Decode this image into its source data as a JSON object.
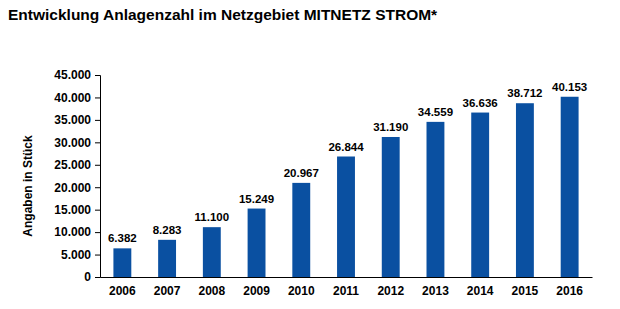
{
  "chart_data": {
    "type": "bar",
    "title": "Entwicklung Anlagenzahl im Netzgebiet MITNETZ STROM*",
    "y_label": "Angaben in Stück",
    "categories": [
      "2006",
      "2007",
      "2008",
      "2009",
      "2010",
      "2011",
      "2012",
      "2013",
      "2014",
      "2015",
      "2016"
    ],
    "values": [
      6382,
      8283,
      11100,
      15249,
      20967,
      26844,
      31190,
      34559,
      36636,
      38712,
      40153
    ],
    "value_labels": [
      "6.382",
      "8.283",
      "11.100",
      "15.249",
      "20.967",
      "26.844",
      "31.190",
      "34.559",
      "36.636",
      "38.712",
      "40.153"
    ],
    "color": "#0a50a1",
    "ylim": [
      0,
      45000
    ],
    "yticks": [
      0,
      {
        "value": 5000,
        "label": "5.000"
      },
      {
        "value": 10000,
        "label": "10.000"
      },
      {
        "value": 15000,
        "label": "15.000"
      },
      {
        "value": 20000,
        "label": "20.000"
      },
      {
        "value": 25000,
        "label": "25.000"
      },
      {
        "value": 30000,
        "label": "30.000"
      },
      {
        "value": 35000,
        "label": "35.000"
      },
      {
        "value": 40000,
        "label": "40.000"
      },
      {
        "value": 45000,
        "label": "45.000"
      }
    ],
    "grid": false,
    "data_labels": true
  }
}
